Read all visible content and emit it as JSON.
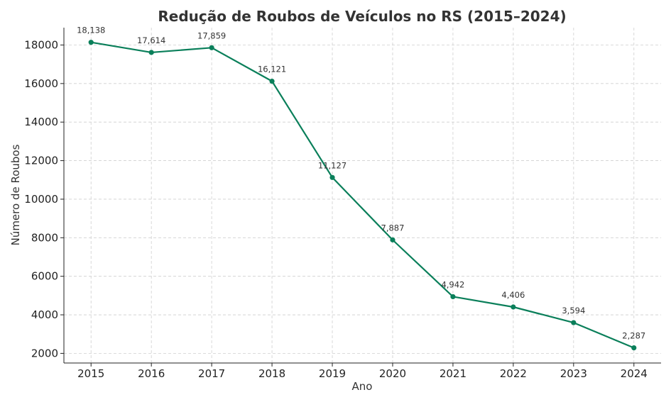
{
  "chart_data": {
    "type": "line",
    "title": "Redução de Roubos de Veículos no RS (2015–2024)",
    "xlabel": "Ano",
    "ylabel": "Número de Roubos",
    "x": [
      2015,
      2016,
      2017,
      2018,
      2019,
      2020,
      2021,
      2022,
      2023,
      2024
    ],
    "series": [
      {
        "values": [
          18138,
          17614,
          17859,
          16121,
          11127,
          7887,
          4942,
          4406,
          3594,
          2287
        ],
        "labels": [
          "18,138",
          "17,614",
          "17,859",
          "16,121",
          "11,127",
          "7,887",
          "4,942",
          "4,406",
          "3,594",
          "2,287"
        ],
        "color": "#0a7f5a"
      }
    ],
    "yticks": [
      2000,
      4000,
      6000,
      8000,
      10000,
      12000,
      14000,
      16000,
      18000
    ],
    "ylim": [
      1500,
      18900
    ],
    "xlim": [
      2014.55,
      2024.45
    ],
    "grid": true,
    "legend": "none"
  }
}
